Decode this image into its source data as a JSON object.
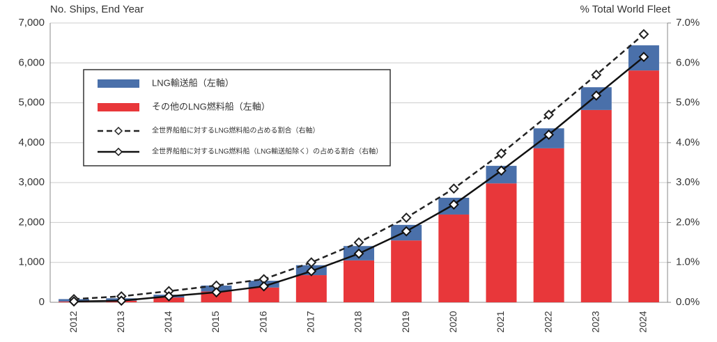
{
  "chart_data": {
    "type": "bar",
    "ylabel": "No. Ships, End Year",
    "y2label": "% Total World Fleet",
    "categories": [
      "2012",
      "2013",
      "2014",
      "2015",
      "2016",
      "2017",
      "2018",
      "2019",
      "2020",
      "2021",
      "2022",
      "2023",
      "2024"
    ],
    "series": [
      {
        "name": "LNG輸送船（左軸）",
        "color": "#4a70aa",
        "values": [
          60,
          60,
          70,
          150,
          170,
          250,
          360,
          390,
          420,
          440,
          500,
          570,
          630
        ]
      },
      {
        "name": "その他のLNG燃料船（左軸）",
        "color": "#e8373a",
        "values": [
          20,
          40,
          120,
          270,
          370,
          680,
          1050,
          1550,
          2200,
          2980,
          3860,
          4820,
          5810
        ]
      }
    ],
    "lines": [
      {
        "name": "全世界船舶に対するLNG燃料船の占める割合（右軸）",
        "color": "#222222",
        "dashed": true,
        "axis": "y2",
        "values": [
          0.08,
          0.15,
          0.28,
          0.42,
          0.58,
          1.0,
          1.5,
          2.12,
          2.85,
          3.73,
          4.7,
          5.7,
          6.72
        ]
      },
      {
        "name": "全世界船舶に対するLNG燃料船（LNG輸送船除く）の占める割合（右軸）",
        "color": "#111111",
        "dashed": false,
        "axis": "y2",
        "values": [
          0.02,
          0.04,
          0.15,
          0.25,
          0.4,
          0.78,
          1.22,
          1.78,
          2.45,
          3.3,
          4.2,
          5.18,
          6.15
        ]
      }
    ],
    "ylim": [
      0,
      7000
    ],
    "yticks": [
      0,
      {
        "value": 1000,
        "label": "1,000"
      },
      {
        "value": 2000,
        "label": "2,000"
      },
      {
        "value": 3000,
        "label": "3,000"
      },
      {
        "value": 4000,
        "label": "4,000"
      },
      {
        "value": 5000,
        "label": "5,000"
      },
      {
        "value": 6000,
        "label": "6,000"
      },
      {
        "value": 7000,
        "label": "7,000"
      }
    ],
    "y2lim": [
      0,
      7
    ],
    "y2ticks": [
      {
        "value": 0,
        "label": "0.0%"
      },
      {
        "value": 1,
        "label": "1.0%"
      },
      {
        "value": 2,
        "label": "2.0%"
      },
      {
        "value": 3,
        "label": "3.0%"
      },
      {
        "value": 4,
        "label": "4.0%"
      },
      {
        "value": 5,
        "label": "5.0%"
      },
      {
        "value": 6,
        "label": "6.0%"
      },
      {
        "value": 7,
        "label": "7.0%"
      }
    ],
    "grid": true
  }
}
